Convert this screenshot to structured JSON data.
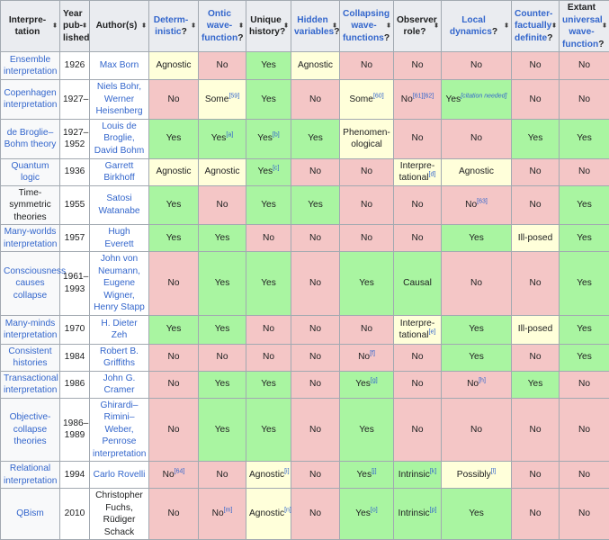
{
  "headers": [
    {
      "parts": [
        [
          "Interpre-tation",
          false
        ]
      ]
    },
    {
      "parts": [
        [
          "Year pub-lished",
          false
        ]
      ]
    },
    {
      "parts": [
        [
          "Author(s)",
          false
        ]
      ]
    },
    {
      "parts": [
        [
          "Determ-inistic",
          true
        ],
        [
          "?",
          false
        ]
      ]
    },
    {
      "parts": [
        [
          "Ontic wave-function",
          true
        ],
        [
          "?",
          false
        ]
      ]
    },
    {
      "parts": [
        [
          "Unique history?",
          false
        ]
      ]
    },
    {
      "parts": [
        [
          "Hidden variables",
          true
        ],
        [
          "?",
          false
        ]
      ]
    },
    {
      "parts": [
        [
          "Collapsing wave-functions",
          true
        ],
        [
          "?",
          false
        ]
      ]
    },
    {
      "parts": [
        [
          "Observer role?",
          false
        ]
      ]
    },
    {
      "parts": [
        [
          "Local dynamics",
          true
        ],
        [
          "?",
          false
        ]
      ]
    },
    {
      "parts": [
        [
          "Counter-factually definite",
          true
        ],
        [
          "?",
          false
        ]
      ]
    },
    {
      "parts": [
        [
          "Extant ",
          false
        ],
        [
          "universal wave-function",
          true
        ],
        [
          "?",
          false
        ]
      ]
    }
  ],
  "sort_icon": "⬍",
  "colors": {
    "yes": "#a9f5a1",
    "no": "#f4c6c6",
    "partial": "#ffffda",
    "link": "#3366cc"
  },
  "rows": [
    {
      "name": "Ensemble interpretation",
      "name_link": true,
      "year": "1926",
      "author": "Max Born",
      "author_link": true,
      "cells": [
        [
          "Agnostic",
          "",
          "mid"
        ],
        [
          "No",
          "",
          "no"
        ],
        [
          "Yes",
          "",
          "yes"
        ],
        [
          "Agnostic",
          "",
          "mid"
        ],
        [
          "No",
          "",
          "no"
        ],
        [
          "No",
          "",
          "no"
        ],
        [
          "No",
          "",
          "no"
        ],
        [
          "No",
          "",
          "no"
        ],
        [
          "No",
          "",
          "no"
        ]
      ]
    },
    {
      "name": "Copenhagen interpretation",
      "name_link": true,
      "year": "1927–",
      "author": "Niels Bohr, Werner Heisenberg",
      "author_link": true,
      "cells": [
        [
          "No",
          "",
          "no"
        ],
        [
          "Some",
          "[59]",
          "mid"
        ],
        [
          "Yes",
          "",
          "yes"
        ],
        [
          "No",
          "",
          "no"
        ],
        [
          "Some",
          "[60]",
          "mid"
        ],
        [
          "No",
          "[61][62]",
          "no"
        ],
        [
          "Yes",
          "[citation needed]",
          "yes"
        ],
        [
          "No",
          "",
          "no"
        ],
        [
          "No",
          "",
          "no"
        ]
      ]
    },
    {
      "name": "de Broglie–Bohm theory",
      "name_link": true,
      "year": "1927–1952",
      "author": "Louis de Broglie, David Bohm",
      "author_link": true,
      "cells": [
        [
          "Yes",
          "",
          "yes"
        ],
        [
          "Yes",
          "[a]",
          "yes"
        ],
        [
          "Yes",
          "[b]",
          "yes"
        ],
        [
          "Yes",
          "",
          "yes"
        ],
        [
          "Phenomen-ological",
          "",
          "mid"
        ],
        [
          "No",
          "",
          "no"
        ],
        [
          "No",
          "",
          "no"
        ],
        [
          "Yes",
          "",
          "yes"
        ],
        [
          "Yes",
          "",
          "yes"
        ]
      ]
    },
    {
      "name": "Quantum logic",
      "name_link": true,
      "year": "1936",
      "author": "Garrett Birkhoff",
      "author_link": true,
      "cells": [
        [
          "Agnostic",
          "",
          "mid"
        ],
        [
          "Agnostic",
          "",
          "mid"
        ],
        [
          "Yes",
          "[c]",
          "yes"
        ],
        [
          "No",
          "",
          "no"
        ],
        [
          "No",
          "",
          "no"
        ],
        [
          "Interpre-tational",
          "[d]",
          "mid"
        ],
        [
          "Agnostic",
          "",
          "mid"
        ],
        [
          "No",
          "",
          "no"
        ],
        [
          "No",
          "",
          "no"
        ]
      ]
    },
    {
      "name": "Time-symmetric theories",
      "name_link": false,
      "year": "1955",
      "author": "Satosi Watanabe",
      "author_link": true,
      "cells": [
        [
          "Yes",
          "",
          "yes"
        ],
        [
          "No",
          "",
          "no"
        ],
        [
          "Yes",
          "",
          "yes"
        ],
        [
          "Yes",
          "",
          "yes"
        ],
        [
          "No",
          "",
          "no"
        ],
        [
          "No",
          "",
          "no"
        ],
        [
          "No",
          "[63]",
          "no"
        ],
        [
          "No",
          "",
          "no"
        ],
        [
          "Yes",
          "",
          "yes"
        ]
      ]
    },
    {
      "name": "Many-worlds interpretation",
      "name_link": true,
      "year": "1957",
      "author": "Hugh Everett",
      "author_link": true,
      "cells": [
        [
          "Yes",
          "",
          "yes"
        ],
        [
          "Yes",
          "",
          "yes"
        ],
        [
          "No",
          "",
          "no"
        ],
        [
          "No",
          "",
          "no"
        ],
        [
          "No",
          "",
          "no"
        ],
        [
          "No",
          "",
          "no"
        ],
        [
          "Yes",
          "",
          "yes"
        ],
        [
          "Ill-posed",
          "",
          "mid"
        ],
        [
          "Yes",
          "",
          "yes"
        ]
      ]
    },
    {
      "name": "Consciousness causes collapse",
      "name_link": true,
      "year": "1961–1993",
      "author": "John von Neumann, Eugene Wigner, Henry Stapp",
      "author_link": true,
      "cells": [
        [
          "No",
          "",
          "no"
        ],
        [
          "Yes",
          "",
          "yes"
        ],
        [
          "Yes",
          "",
          "yes"
        ],
        [
          "No",
          "",
          "no"
        ],
        [
          "Yes",
          "",
          "yes"
        ],
        [
          "Causal",
          "",
          "yes"
        ],
        [
          "No",
          "",
          "no"
        ],
        [
          "No",
          "",
          "no"
        ],
        [
          "Yes",
          "",
          "yes"
        ]
      ]
    },
    {
      "name": "Many-minds interpretation",
      "name_link": true,
      "year": "1970",
      "author": "H. Dieter Zeh",
      "author_link": true,
      "cells": [
        [
          "Yes",
          "",
          "yes"
        ],
        [
          "Yes",
          "",
          "yes"
        ],
        [
          "No",
          "",
          "no"
        ],
        [
          "No",
          "",
          "no"
        ],
        [
          "No",
          "",
          "no"
        ],
        [
          "Interpre-tational",
          "[e]",
          "mid"
        ],
        [
          "Yes",
          "",
          "yes"
        ],
        [
          "Ill-posed",
          "",
          "mid"
        ],
        [
          "Yes",
          "",
          "yes"
        ]
      ]
    },
    {
      "name": "Consistent histories",
      "name_link": true,
      "year": "1984",
      "author": "Robert B. Griffiths",
      "author_link": true,
      "cells": [
        [
          "No",
          "",
          "no"
        ],
        [
          "No",
          "",
          "no"
        ],
        [
          "No",
          "",
          "no"
        ],
        [
          "No",
          "",
          "no"
        ],
        [
          "No",
          "[f]",
          "no"
        ],
        [
          "No",
          "",
          "no"
        ],
        [
          "Yes",
          "",
          "yes"
        ],
        [
          "No",
          "",
          "no"
        ],
        [
          "Yes",
          "",
          "yes"
        ]
      ]
    },
    {
      "name": "Transactional interpretation",
      "name_link": true,
      "year": "1986",
      "author": "John G. Cramer",
      "author_link": true,
      "cells": [
        [
          "No",
          "",
          "no"
        ],
        [
          "Yes",
          "",
          "yes"
        ],
        [
          "Yes",
          "",
          "yes"
        ],
        [
          "No",
          "",
          "no"
        ],
        [
          "Yes",
          "[g]",
          "yes"
        ],
        [
          "No",
          "",
          "no"
        ],
        [
          "No",
          "[h]",
          "no"
        ],
        [
          "Yes",
          "",
          "yes"
        ],
        [
          "No",
          "",
          "no"
        ]
      ]
    },
    {
      "name": "Objective-collapse theories",
      "name_link": true,
      "year": "1986–1989",
      "author": "Ghirardi–Rimini–Weber, Penrose interpretation",
      "author_link": true,
      "cells": [
        [
          "No",
          "",
          "no"
        ],
        [
          "Yes",
          "",
          "yes"
        ],
        [
          "Yes",
          "",
          "yes"
        ],
        [
          "No",
          "",
          "no"
        ],
        [
          "Yes",
          "",
          "yes"
        ],
        [
          "No",
          "",
          "no"
        ],
        [
          "No",
          "",
          "no"
        ],
        [
          "No",
          "",
          "no"
        ],
        [
          "No",
          "",
          "no"
        ]
      ]
    },
    {
      "name": "Relational interpretation",
      "name_link": true,
      "year": "1994",
      "author": "Carlo Rovelli",
      "author_link": true,
      "cells": [
        [
          "No",
          "[64]",
          "no"
        ],
        [
          "No",
          "",
          "no"
        ],
        [
          "Agnostic",
          "[i]",
          "mid"
        ],
        [
          "No",
          "",
          "no"
        ],
        [
          "Yes",
          "[j]",
          "yes"
        ],
        [
          "Intrinsic",
          "[k]",
          "yes"
        ],
        [
          "Possibly",
          "[l]",
          "mid"
        ],
        [
          "No",
          "",
          "no"
        ],
        [
          "No",
          "",
          "no"
        ]
      ]
    },
    {
      "name": "QBism",
      "name_link": true,
      "year": "2010",
      "author": "Christopher Fuchs, Rüdiger Schack",
      "author_link": false,
      "cells": [
        [
          "No",
          "",
          "no"
        ],
        [
          "No",
          "[m]",
          "no"
        ],
        [
          "Agnostic",
          "[n]",
          "mid"
        ],
        [
          "No",
          "",
          "no"
        ],
        [
          "Yes",
          "[o]",
          "yes"
        ],
        [
          "Intrinsic",
          "[p]",
          "yes"
        ],
        [
          "Yes",
          "",
          "yes"
        ],
        [
          "No",
          "",
          "no"
        ],
        [
          "No",
          "",
          "no"
        ]
      ]
    }
  ]
}
